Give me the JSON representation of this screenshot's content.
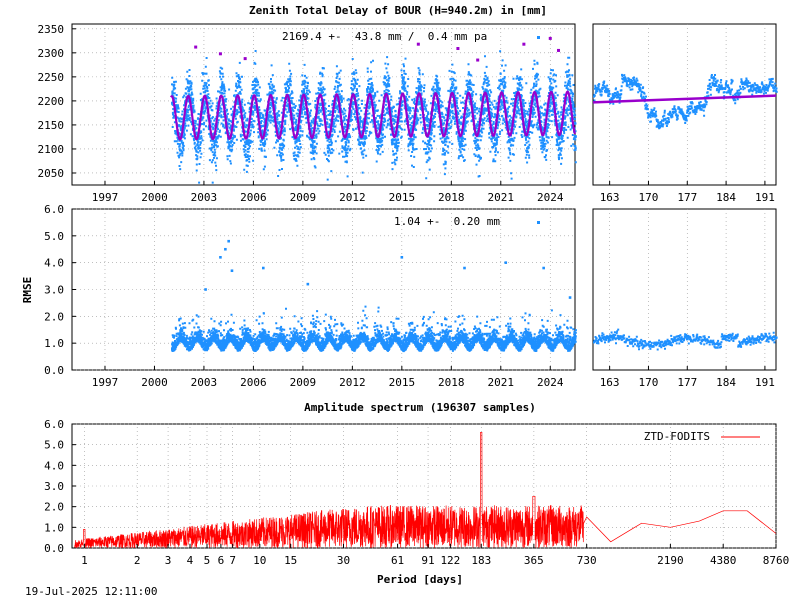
{
  "title": "Zenith Total Delay of BOUR (H=940.2m) in [mm]",
  "timestamp": "19-Jul-2025 12:11:00",
  "colors": {
    "ztd_points": "#1e90ff",
    "model": "#9900cc",
    "spectrum": "#ff0000",
    "axis": "#000000",
    "grid": "#999999"
  },
  "chart_data": [
    {
      "id": "ztd-series",
      "type": "scatter",
      "annotation": "2169.4 +-  43.8 mm /  0.4 mm pa",
      "xlabel": "",
      "ylabel": "",
      "xlim": [
        1995.0,
        2025.5
      ],
      "ylim": [
        2025,
        2360
      ],
      "x_ticks": [
        "1997",
        "2000",
        "2003",
        "2006",
        "2009",
        "2012",
        "2015",
        "2018",
        "2021",
        "2024"
      ],
      "y_ticks": [
        "2050",
        "2100",
        "2150",
        "2200",
        "2250",
        "2300",
        "2350"
      ],
      "data_start": 2001.0,
      "data_end": 2025.5,
      "mean": 2169.4,
      "std": 43.8,
      "trend_mm_per_year": 0.4,
      "seasonal_amplitude": 45,
      "outliers": [
        [
          2002.5,
          2312
        ],
        [
          2004.0,
          2298
        ],
        [
          2005.5,
          2288
        ],
        [
          2016.0,
          2318
        ],
        [
          2018.4,
          2309
        ],
        [
          2019.6,
          2285
        ],
        [
          2022.4,
          2318
        ],
        [
          2024.0,
          2330
        ],
        [
          2024.5,
          2305
        ]
      ]
    },
    {
      "id": "ztd-recent",
      "type": "scatter",
      "xlim": [
        160,
        193
      ],
      "ylim": [
        2025,
        2360
      ],
      "x_ticks": [
        "163",
        "170",
        "177",
        "184",
        "191"
      ],
      "trend_start": 2197,
      "trend_end": 2211
    },
    {
      "id": "rmse-series",
      "type": "scatter",
      "annotation": "1.04 +-  0.20 mm",
      "ylabel": "RMSE",
      "xlim": [
        1995.0,
        2025.5
      ],
      "ylim": [
        0.0,
        6.0
      ],
      "x_ticks": [
        "1997",
        "2000",
        "2003",
        "2006",
        "2009",
        "2012",
        "2015",
        "2018",
        "2021",
        "2024"
      ],
      "y_ticks": [
        "0.0",
        "1.0",
        "2.0",
        "3.0",
        "4.0",
        "5.0",
        "6.0"
      ],
      "mean": 1.04,
      "std": 0.2,
      "outliers": [
        [
          2004.5,
          4.8
        ],
        [
          2004.3,
          4.5
        ],
        [
          2004.0,
          4.2
        ],
        [
          2004.7,
          3.7
        ],
        [
          2006.6,
          3.8
        ],
        [
          2009.3,
          3.2
        ],
        [
          2015.0,
          4.2
        ],
        [
          2018.8,
          3.8
        ],
        [
          2021.3,
          4.0
        ],
        [
          2023.6,
          3.8
        ],
        [
          2025.2,
          2.7
        ],
        [
          2003.1,
          3.0
        ]
      ]
    },
    {
      "id": "rmse-recent",
      "type": "scatter",
      "xlim": [
        160,
        193
      ],
      "ylim": [
        0.0,
        6.0
      ],
      "x_ticks": [
        "163",
        "170",
        "177",
        "184",
        "191"
      ]
    },
    {
      "id": "spectrum",
      "type": "line",
      "title": "Amplitude spectrum (196307 samples)",
      "xlabel": "Period [days]",
      "series": [
        {
          "name": "ZTD-FODITS"
        }
      ],
      "xlim": [
        0.85,
        8760
      ],
      "ylim": [
        0.0,
        6.0
      ],
      "x_ticks": [
        "1",
        "2",
        "3",
        "4",
        "5",
        "6",
        "7",
        "10",
        "15",
        "30",
        "61",
        "91",
        "122",
        "183",
        "365",
        "730",
        "2190",
        "4380",
        "8760"
      ],
      "y_ticks": [
        "0.0",
        "1.0",
        "2.0",
        "3.0",
        "4.0",
        "5.0",
        "6.0"
      ],
      "peak": [
        183,
        5.6
      ],
      "low_period_points": [
        [
          730,
          1.5
        ],
        [
          1000,
          0.3
        ],
        [
          1500,
          1.2
        ],
        [
          2190,
          1.0
        ],
        [
          3200,
          1.3
        ],
        [
          4380,
          1.8
        ],
        [
          6000,
          1.8
        ],
        [
          8760,
          0.7
        ]
      ]
    }
  ]
}
